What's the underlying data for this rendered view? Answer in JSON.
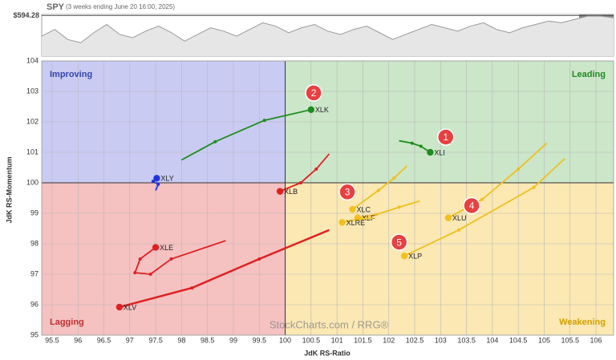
{
  "chart_data": [
    {
      "type": "area",
      "title": "SPY",
      "subtitle": "(3 weeks ending June 20 16:00, 2025)",
      "values": [
        582,
        586,
        580,
        578,
        584,
        589,
        583,
        581,
        585,
        588,
        584,
        579,
        583,
        587,
        585,
        582,
        586,
        590,
        588,
        584,
        587,
        589,
        585,
        583,
        586,
        588,
        584,
        580,
        583,
        586,
        589,
        587,
        585,
        588,
        590,
        586,
        584,
        587,
        589,
        591,
        590,
        592,
        594,
        594,
        593
      ],
      "color": "#9a9a9a",
      "ylim": [
        570,
        595
      ],
      "yticks": [
        {
          "value": 594.28,
          "label": "$594.28"
        }
      ]
    },
    {
      "type": "rrg",
      "xlabel": "JdK RS-Ratio",
      "ylabel": "JdK RS-Momentum",
      "xlim": [
        95.3,
        106.34
      ],
      "ylim": [
        95,
        104
      ],
      "xticks": [
        95.5,
        96,
        96.5,
        97,
        97.5,
        98,
        98.5,
        99,
        99.5,
        100,
        100.5,
        101,
        101.5,
        102,
        102.5,
        103,
        103.5,
        104,
        104.5,
        105,
        105.5,
        106
      ],
      "yticks": [
        95,
        96,
        97,
        98,
        99,
        100,
        101,
        102,
        103,
        104
      ],
      "grid": true,
      "quadrants": {
        "top_left": "Improving",
        "top_right": "Leading",
        "bottom_left": "Lagging",
        "bottom_right": "Weakening"
      },
      "watermark": "StockCharts.com / RRG®",
      "annotations": [
        "1",
        "2",
        "3",
        "4",
        "5"
      ],
      "series": [
        {
          "name": "XLK",
          "color": "#1e8c1e",
          "x": [
            98,
            98.65,
            99.6,
            100.5
          ],
          "values": [
            100.75,
            101.35,
            102.05,
            102.4
          ]
        },
        {
          "name": "XLI",
          "color": "#1e8c1e",
          "x": [
            102.2,
            102.45,
            102.62,
            102.8
          ],
          "values": [
            101.38,
            101.3,
            101.2,
            101.0
          ]
        },
        {
          "name": "XLY",
          "color": "#2233dd",
          "x": [
            97.5,
            97.55,
            97.45,
            97.52
          ],
          "values": [
            99.75,
            99.95,
            100.05,
            100.15
          ]
        },
        {
          "name": "XLB",
          "color": "#e02020",
          "x": [
            100.85,
            100.6,
            100.3,
            99.9
          ],
          "values": [
            100.95,
            100.45,
            100.0,
            99.72
          ]
        },
        {
          "name": "XLE",
          "color": "#e02020",
          "x": [
            98.85,
            97.8,
            97.4,
            97.1,
            97.2,
            97.5
          ],
          "values": [
            98.1,
            97.5,
            97.0,
            97.05,
            97.5,
            97.88
          ]
        },
        {
          "name": "XLV",
          "color": "#e02020",
          "x": [
            100.85,
            99.5,
            98.2,
            96.8
          ],
          "values": [
            98.45,
            97.5,
            96.55,
            95.92
          ]
        },
        {
          "name": "XLC",
          "color": "#f0c020",
          "x": [
            102.35,
            102.1,
            101.8,
            101.3
          ],
          "values": [
            100.55,
            100.15,
            99.75,
            99.13
          ]
        },
        {
          "name": "XLF",
          "color": "#f0c020",
          "x": [
            102.6,
            102.2,
            101.75,
            101.4
          ],
          "values": [
            99.4,
            99.2,
            98.95,
            98.85
          ]
        },
        {
          "name": "XLRE",
          "color": "#f0c020",
          "x": [
            101.7,
            101.4,
            101.1
          ],
          "values": [
            98.85,
            98.8,
            98.7
          ]
        },
        {
          "name": "XLU",
          "color": "#f0c020",
          "x": [
            105.05,
            104.5,
            103.8,
            103.15
          ],
          "values": [
            101.3,
            100.45,
            99.45,
            98.85
          ]
        },
        {
          "name": "XLP",
          "color": "#f0c020",
          "x": [
            105.4,
            104.8,
            103.35,
            102.3
          ],
          "values": [
            100.8,
            99.85,
            98.45,
            97.6
          ]
        }
      ]
    }
  ]
}
